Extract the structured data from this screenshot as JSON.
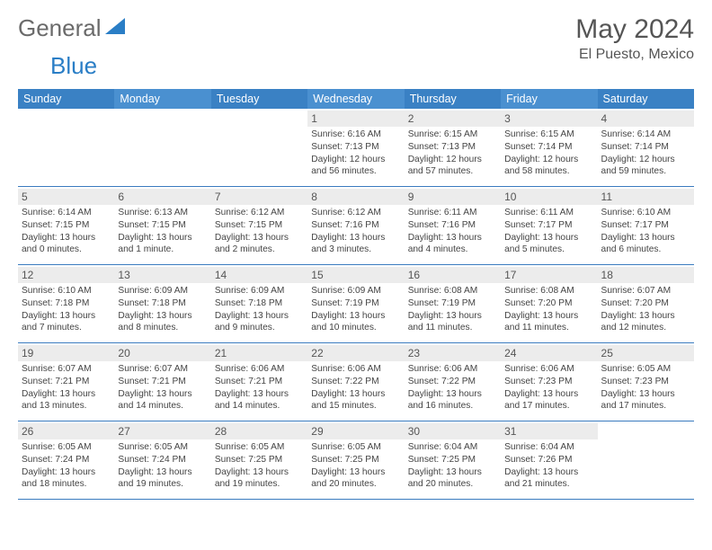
{
  "brand": {
    "textGray": "General",
    "textBlue": "Blue"
  },
  "header": {
    "title": "May 2024",
    "location": "El Puesto, Mexico"
  },
  "colors": {
    "headerBlue": "#3a81c4",
    "headerBlueAlt": "#4a90d0",
    "rowBorder": "#3a7bbf",
    "dayNumBg": "#ececec",
    "textGray": "#6a6a6a",
    "brandBlue": "#2a7ec6"
  },
  "daysOfWeek": [
    "Sunday",
    "Monday",
    "Tuesday",
    "Wednesday",
    "Thursday",
    "Friday",
    "Saturday"
  ],
  "weeks": [
    [
      null,
      null,
      null,
      {
        "n": "1",
        "sr": "6:16 AM",
        "ss": "7:13 PM",
        "dl": "12 hours and 56 minutes."
      },
      {
        "n": "2",
        "sr": "6:15 AM",
        "ss": "7:13 PM",
        "dl": "12 hours and 57 minutes."
      },
      {
        "n": "3",
        "sr": "6:15 AM",
        "ss": "7:14 PM",
        "dl": "12 hours and 58 minutes."
      },
      {
        "n": "4",
        "sr": "6:14 AM",
        "ss": "7:14 PM",
        "dl": "12 hours and 59 minutes."
      }
    ],
    [
      {
        "n": "5",
        "sr": "6:14 AM",
        "ss": "7:15 PM",
        "dl": "13 hours and 0 minutes."
      },
      {
        "n": "6",
        "sr": "6:13 AM",
        "ss": "7:15 PM",
        "dl": "13 hours and 1 minute."
      },
      {
        "n": "7",
        "sr": "6:12 AM",
        "ss": "7:15 PM",
        "dl": "13 hours and 2 minutes."
      },
      {
        "n": "8",
        "sr": "6:12 AM",
        "ss": "7:16 PM",
        "dl": "13 hours and 3 minutes."
      },
      {
        "n": "9",
        "sr": "6:11 AM",
        "ss": "7:16 PM",
        "dl": "13 hours and 4 minutes."
      },
      {
        "n": "10",
        "sr": "6:11 AM",
        "ss": "7:17 PM",
        "dl": "13 hours and 5 minutes."
      },
      {
        "n": "11",
        "sr": "6:10 AM",
        "ss": "7:17 PM",
        "dl": "13 hours and 6 minutes."
      }
    ],
    [
      {
        "n": "12",
        "sr": "6:10 AM",
        "ss": "7:18 PM",
        "dl": "13 hours and 7 minutes."
      },
      {
        "n": "13",
        "sr": "6:09 AM",
        "ss": "7:18 PM",
        "dl": "13 hours and 8 minutes."
      },
      {
        "n": "14",
        "sr": "6:09 AM",
        "ss": "7:18 PM",
        "dl": "13 hours and 9 minutes."
      },
      {
        "n": "15",
        "sr": "6:09 AM",
        "ss": "7:19 PM",
        "dl": "13 hours and 10 minutes."
      },
      {
        "n": "16",
        "sr": "6:08 AM",
        "ss": "7:19 PM",
        "dl": "13 hours and 11 minutes."
      },
      {
        "n": "17",
        "sr": "6:08 AM",
        "ss": "7:20 PM",
        "dl": "13 hours and 11 minutes."
      },
      {
        "n": "18",
        "sr": "6:07 AM",
        "ss": "7:20 PM",
        "dl": "13 hours and 12 minutes."
      }
    ],
    [
      {
        "n": "19",
        "sr": "6:07 AM",
        "ss": "7:21 PM",
        "dl": "13 hours and 13 minutes."
      },
      {
        "n": "20",
        "sr": "6:07 AM",
        "ss": "7:21 PM",
        "dl": "13 hours and 14 minutes."
      },
      {
        "n": "21",
        "sr": "6:06 AM",
        "ss": "7:21 PM",
        "dl": "13 hours and 14 minutes."
      },
      {
        "n": "22",
        "sr": "6:06 AM",
        "ss": "7:22 PM",
        "dl": "13 hours and 15 minutes."
      },
      {
        "n": "23",
        "sr": "6:06 AM",
        "ss": "7:22 PM",
        "dl": "13 hours and 16 minutes."
      },
      {
        "n": "24",
        "sr": "6:06 AM",
        "ss": "7:23 PM",
        "dl": "13 hours and 17 minutes."
      },
      {
        "n": "25",
        "sr": "6:05 AM",
        "ss": "7:23 PM",
        "dl": "13 hours and 17 minutes."
      }
    ],
    [
      {
        "n": "26",
        "sr": "6:05 AM",
        "ss": "7:24 PM",
        "dl": "13 hours and 18 minutes."
      },
      {
        "n": "27",
        "sr": "6:05 AM",
        "ss": "7:24 PM",
        "dl": "13 hours and 19 minutes."
      },
      {
        "n": "28",
        "sr": "6:05 AM",
        "ss": "7:25 PM",
        "dl": "13 hours and 19 minutes."
      },
      {
        "n": "29",
        "sr": "6:05 AM",
        "ss": "7:25 PM",
        "dl": "13 hours and 20 minutes."
      },
      {
        "n": "30",
        "sr": "6:04 AM",
        "ss": "7:25 PM",
        "dl": "13 hours and 20 minutes."
      },
      {
        "n": "31",
        "sr": "6:04 AM",
        "ss": "7:26 PM",
        "dl": "13 hours and 21 minutes."
      },
      null
    ]
  ],
  "labels": {
    "sunrise": "Sunrise:",
    "sunset": "Sunset:",
    "daylight": "Daylight:"
  }
}
